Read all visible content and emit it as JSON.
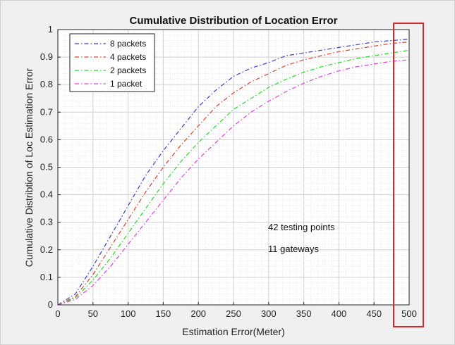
{
  "chart_data": {
    "type": "line",
    "title": "Cumulative Distribution of Location Error",
    "xlabel": "Estimation Error(Meter)",
    "ylabel": "Cumulative Distribtion of Loc Estimation Error",
    "xlim": [
      0,
      500
    ],
    "ylim": [
      0,
      1
    ],
    "xticks": [
      0,
      50,
      100,
      150,
      200,
      250,
      300,
      350,
      400,
      450,
      500
    ],
    "yticks": [
      0,
      0.1,
      0.2,
      0.3,
      0.4,
      0.5,
      0.6,
      0.7,
      0.8,
      0.9,
      1
    ],
    "grid": "on (major and minor dotted)",
    "legend_position": "top-left",
    "x": [
      0,
      25,
      50,
      75,
      100,
      125,
      150,
      175,
      200,
      225,
      250,
      275,
      300,
      325,
      350,
      375,
      400,
      425,
      450,
      475,
      500
    ],
    "series": [
      {
        "name": "8 packets",
        "color": "#3b3bd6",
        "style": "dash-dot",
        "values": [
          0,
          0.04,
          0.14,
          0.25,
          0.36,
          0.47,
          0.56,
          0.64,
          0.72,
          0.78,
          0.83,
          0.86,
          0.88,
          0.905,
          0.915,
          0.925,
          0.935,
          0.945,
          0.955,
          0.96,
          0.965
        ]
      },
      {
        "name": "4 packets",
        "color": "#e0402a",
        "style": "dash-dot",
        "values": [
          0,
          0.03,
          0.11,
          0.21,
          0.31,
          0.41,
          0.5,
          0.58,
          0.65,
          0.72,
          0.77,
          0.81,
          0.84,
          0.87,
          0.89,
          0.905,
          0.92,
          0.93,
          0.94,
          0.95,
          0.955
        ]
      },
      {
        "name": "2 packets",
        "color": "#22dd22",
        "style": "dash-dot",
        "values": [
          0,
          0.025,
          0.09,
          0.17,
          0.26,
          0.35,
          0.44,
          0.52,
          0.59,
          0.65,
          0.71,
          0.75,
          0.79,
          0.82,
          0.845,
          0.865,
          0.88,
          0.895,
          0.905,
          0.915,
          0.925
        ]
      },
      {
        "name": "1 packet",
        "color": "#e040e0",
        "style": "dash-dot",
        "values": [
          0,
          0.02,
          0.07,
          0.14,
          0.22,
          0.3,
          0.38,
          0.46,
          0.53,
          0.59,
          0.65,
          0.7,
          0.74,
          0.775,
          0.805,
          0.83,
          0.85,
          0.865,
          0.875,
          0.885,
          0.89
        ]
      }
    ],
    "annotations": [
      "42 testing points",
      "11 gateways"
    ],
    "highlight": {
      "description": "red rectangle around x≈480–500 region",
      "color": "#d62728"
    }
  }
}
